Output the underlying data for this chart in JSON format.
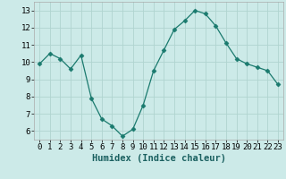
{
  "x": [
    0,
    1,
    2,
    3,
    4,
    5,
    6,
    7,
    8,
    9,
    10,
    11,
    12,
    13,
    14,
    15,
    16,
    17,
    18,
    19,
    20,
    21,
    22,
    23
  ],
  "y": [
    9.9,
    10.5,
    10.2,
    9.6,
    10.4,
    7.9,
    6.7,
    6.3,
    5.7,
    6.1,
    7.5,
    9.5,
    10.7,
    11.9,
    12.4,
    13.0,
    12.8,
    12.1,
    11.1,
    10.2,
    9.9,
    9.7,
    9.5,
    8.7
  ],
  "line_color": "#1a7a6e",
  "marker": "D",
  "marker_size": 2.5,
  "bg_color": "#cceae8",
  "grid_color": "#b0d4d0",
  "xlabel": "Humidex (Indice chaleur)",
  "ylim": [
    5.5,
    13.5
  ],
  "xlim": [
    -0.5,
    23.5
  ],
  "yticks": [
    6,
    7,
    8,
    9,
    10,
    11,
    12,
    13
  ],
  "xticks": [
    0,
    1,
    2,
    3,
    4,
    5,
    6,
    7,
    8,
    9,
    10,
    11,
    12,
    13,
    14,
    15,
    16,
    17,
    18,
    19,
    20,
    21,
    22,
    23
  ],
  "xlabel_fontsize": 7.5,
  "tick_fontsize": 6.5
}
